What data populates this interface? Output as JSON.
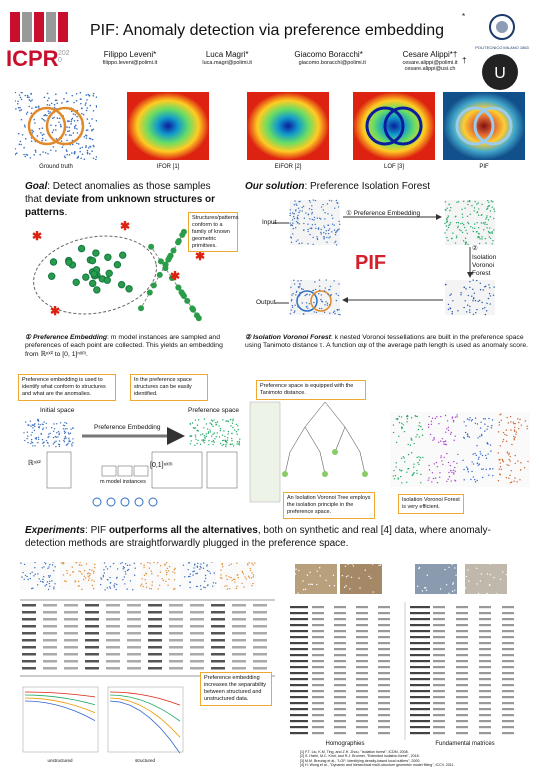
{
  "header": {
    "logo": "ICPR",
    "logo_year": "2020",
    "title": "PIF: Anomaly detection via preference embedding",
    "institution": "POLITECNICO MILANO 1863",
    "authors": [
      {
        "name": "Filippo Leveni*",
        "email": "filippo.leveni@polimi.it"
      },
      {
        "name": "Luca Magri*",
        "email": "luca.magri@polimi.it"
      },
      {
        "name": "Giacomo Boracchi*",
        "email": "giacomo.boracchi@polimi.it"
      },
      {
        "name": "Cesare Alippi*†",
        "email": "cesare.alippi@polimi.it cesare.alippi@usi.ch"
      }
    ],
    "mark1": "*",
    "mark2": "†"
  },
  "methods": [
    "Ground truth",
    "IFOR [1]",
    "EIFOR [2]",
    "LOF [3]",
    "PIF"
  ],
  "goal": {
    "label": "Goal",
    "text": ": Detect anomalies as those samples that ",
    "emph": "deviate from unknown structures or patterns",
    "end": ".",
    "callout": "Structures/patterns conform to a family of known geometric primitives."
  },
  "solution": {
    "label": "Our solution",
    "text": ": Preference Isolation Forest",
    "input": "Input",
    "output": "Output",
    "step1": "① Preference Embedding",
    "step2": "②",
    "step2_name": "Isolation Voronoi Forest",
    "pif": "PIF"
  },
  "embedding": {
    "label": "① Preference Embedding",
    "text": ": m model instances are sampled and preferences of each point are collected. This yields an embedding from ℝⁿˣ² to [0, 1]ⁿˣᵐ.",
    "callout1": "Preference embedding is used to identify what conform to structures and what are the anomalies.",
    "callout2": "In the preference space structures can be easily identified.",
    "initial": "Initial space",
    "pref_space": "Preference space",
    "arrow": "Preference Embedding",
    "domain": "ℝⁿˣ²",
    "codomain": "[0,1]ⁿˣᵐ",
    "instances": "m model instances"
  },
  "forest": {
    "label": "② Isolation Voronoi Forest",
    "text": ": k nested Voronoi tessellations are built in the preference space using Tanimoto distance τ. A function αψ of the average path length is used as anomaly score.",
    "callout1": "Preference space is equipped with the Tanimoto distance.",
    "callout2": "An Isolation Voronoi Tree employs the isolation principle in the preference space.",
    "callout3": "Isolation Voronoi Forest is very efficient."
  },
  "experiments": {
    "label": "Experiments",
    "text1": ": PIF ",
    "emph": "outperforms all the alternatives",
    "text2": ", both on synthetic and real [4] data, where anomaly-detection methods are straightforwardly plugged in the preference space.",
    "callout": "Preference embedding increases the separability between structured and unstructured data.",
    "homographies": "Homographies",
    "fundamental": "Fundamental matrices",
    "unstructured": "unstructured",
    "structured": "structured"
  },
  "references": [
    "[1] F.T. Liu, K.M. Ting, and Z.H. Zhou, \"Isolation forest\", ICDM, 2008.",
    "[2] S. Hariri, M.C. Kind, and R.J. Brunner, \"Extended isolation forest\", 2018.",
    "[3] M.M. Breunig et al., \"LOF: Identifying density-based local outliers\", 2000.",
    "[4] H. Wong et al., \"Dynamic and hierarchical multi-structure geometric model fitting\", ICCV, 2011."
  ]
}
